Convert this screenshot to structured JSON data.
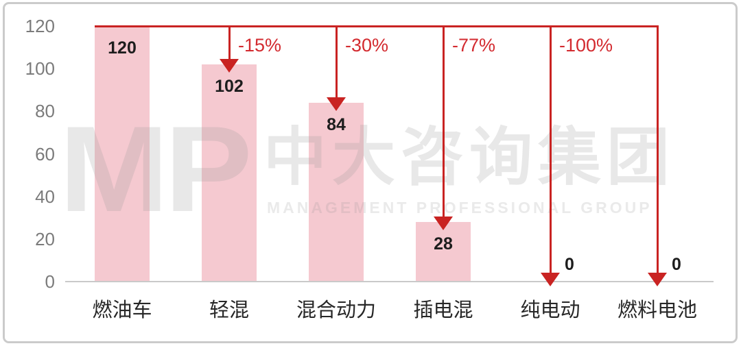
{
  "watermark": {
    "logo": "MP",
    "cn": "中大咨询集团",
    "en": "MANAGEMENT PROFESSIONAL GROUP"
  },
  "chart_data": {
    "type": "bar",
    "title": "",
    "xlabel": "",
    "ylabel": "",
    "categories": [
      "燃油车",
      "轻混",
      "混合动力",
      "插电混",
      "纯电动",
      "燃料电池"
    ],
    "values": [
      120,
      102,
      84,
      28,
      0,
      0
    ],
    "bar_labels": [
      "120",
      "102",
      "84",
      "28",
      "0",
      "0"
    ],
    "ylim": [
      0,
      120
    ],
    "yticks": [
      0,
      20,
      40,
      60,
      80,
      100,
      120
    ],
    "ytick_labels": [
      "0",
      "20",
      "40",
      "60",
      "80",
      "100",
      "120"
    ],
    "grid": "off",
    "legend": "none",
    "annotations": {
      "reference_line_value": 120,
      "drops": [
        {
          "category_index": 1,
          "label": "-15%"
        },
        {
          "category_index": 2,
          "label": "-30%"
        },
        {
          "category_index": 3,
          "label": "-77%"
        },
        {
          "category_index": 4,
          "label": "-100%"
        },
        {
          "category_index": 5,
          "label": ""
        }
      ]
    },
    "colors": {
      "bar_fill": "#F5C9D0",
      "annotation_red": "#C92322",
      "pct_text_red": "#D32A2F",
      "axis_line": "#C9C9C9",
      "ytick_text": "#7B7B7B",
      "value_text": "#1D1D1D",
      "category_text": "#272727",
      "frame_border": "#CBCBCB"
    }
  }
}
